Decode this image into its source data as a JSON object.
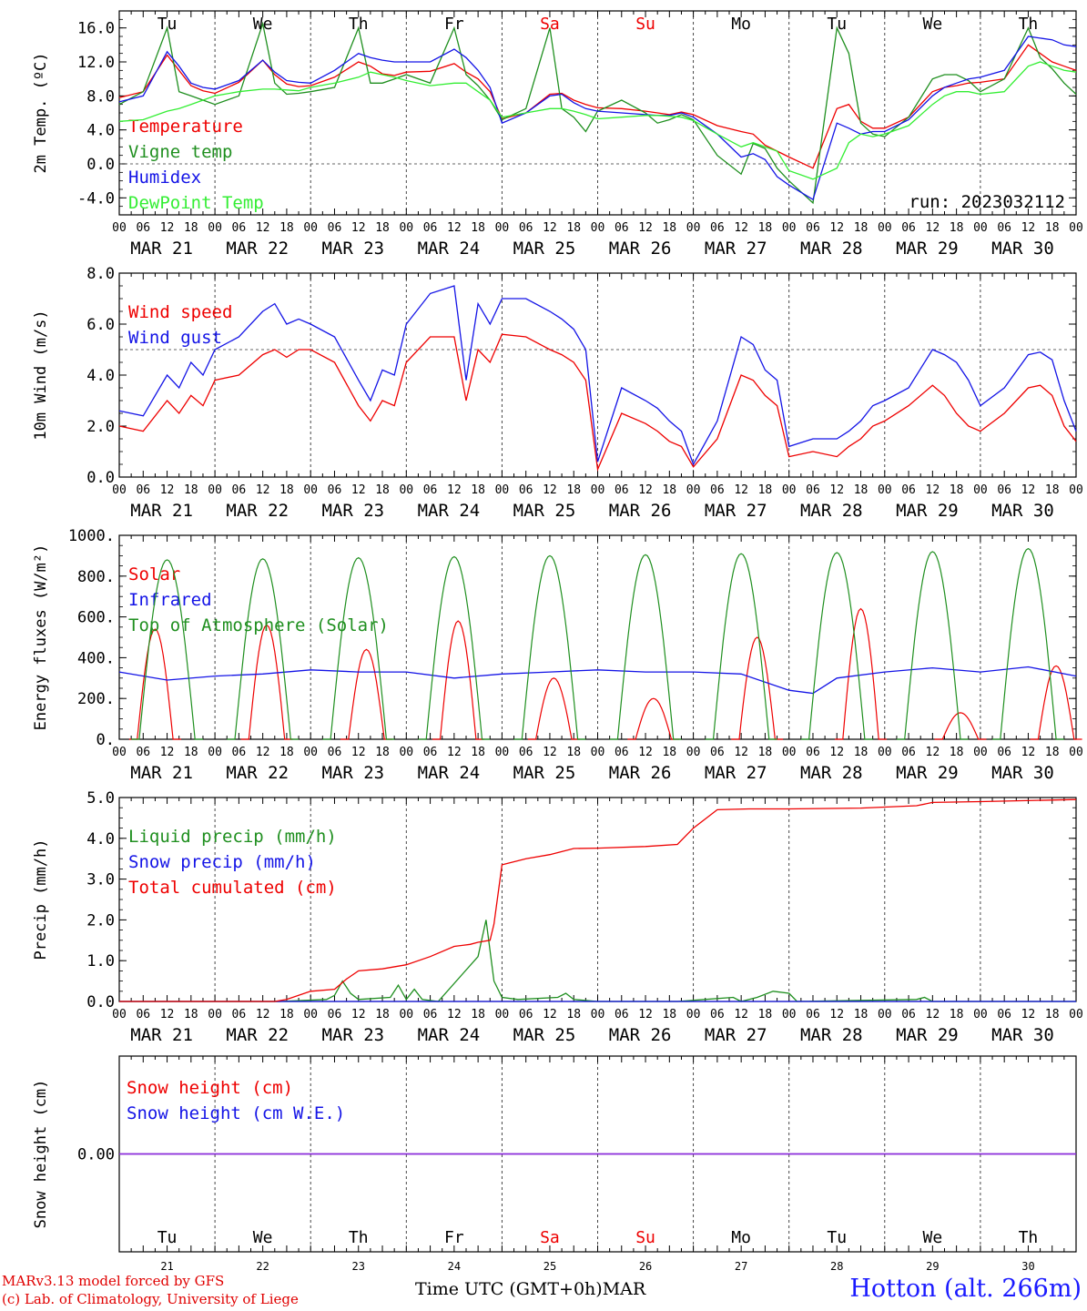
{
  "footer": {
    "credit_line1": "MARv3.13 model forced by GFS",
    "credit_line2": "(c) Lab. of Climatology, University of Liege",
    "xlabel": "Time UTC (GMT+0h)",
    "month": "MAR",
    "station": "Hotton (alt. 266m)"
  },
  "colors": {
    "red": "#ee0000",
    "green": "#1f8f1f",
    "blue": "#1414e6",
    "lightgreen": "#33ee33",
    "purple": "#8a2be2",
    "weekend": "#ee0000"
  },
  "days": {
    "labels": [
      "Tu",
      "We",
      "Th",
      "Fr",
      "Sa",
      "Su",
      "Mo",
      "Tu",
      "We",
      "Th"
    ],
    "weekend": [
      false,
      false,
      false,
      false,
      true,
      true,
      false,
      false,
      false,
      false
    ],
    "dates": [
      "MAR 21",
      "MAR 22",
      "MAR 23",
      "MAR 24",
      "MAR 25",
      "MAR 26",
      "MAR 27",
      "MAR 28",
      "MAR 29",
      "MAR 30"
    ],
    "daynums": [
      "21",
      "22",
      "23",
      "24",
      "25",
      "26",
      "27",
      "28",
      "29",
      "30"
    ],
    "hours": [
      "00",
      "06",
      "12",
      "18"
    ],
    "end_hour": "00"
  },
  "chart_data": [
    {
      "type": "line",
      "ylabel": "2m Temp. (ºC)",
      "ylim": [
        -6,
        18
      ],
      "yticks": [
        "-4.0",
        "0.0",
        "4.0",
        "8.0",
        "12.0",
        "16.0"
      ],
      "ytick_values": [
        -4,
        0,
        4,
        8,
        12,
        16
      ],
      "ref_line": 0,
      "annotation": "run: 2023032112",
      "x_hours": [
        0,
        6,
        12,
        15,
        18,
        21,
        24,
        30,
        36,
        39,
        42,
        45,
        48,
        54,
        60,
        63,
        66,
        69,
        72,
        78,
        84,
        87,
        90,
        93,
        96,
        102,
        108,
        111,
        114,
        117,
        120,
        126,
        132,
        135,
        138,
        141,
        144,
        150,
        156,
        159,
        162,
        165,
        168,
        174,
        180,
        183,
        186,
        189,
        192,
        198,
        204,
        207,
        210,
        213,
        216,
        222,
        228,
        231,
        234,
        237,
        240
      ],
      "series": [
        {
          "name": "Temperature",
          "color": "red",
          "values": [
            7.8,
            8.5,
            12.8,
            11,
            9.2,
            8.6,
            8.3,
            9.6,
            12.2,
            10.5,
            9.4,
            9.1,
            9.2,
            10.2,
            12,
            11.5,
            10.6,
            10.4,
            10.8,
            10.9,
            11.8,
            10.8,
            10,
            8.5,
            5.3,
            6,
            8.2,
            8.3,
            7.5,
            7,
            6.6,
            6.5,
            6.2,
            6,
            5.8,
            6.1,
            5.8,
            4.5,
            3.8,
            3.5,
            2.2,
            1.5,
            0.8,
            -0.5,
            6.5,
            7,
            5,
            4.2,
            4.2,
            5.5,
            8.5,
            9,
            9.2,
            9.5,
            9.6,
            10,
            14,
            13,
            12,
            11.5,
            11
          ]
        },
        {
          "name": "Vigne temp",
          "color": "green",
          "values": [
            7,
            8.5,
            16,
            8.5,
            8,
            7.5,
            7,
            8,
            16.5,
            9.5,
            8.2,
            8.3,
            8.5,
            9,
            16,
            9.5,
            9.5,
            10,
            10.5,
            9.5,
            16,
            10.5,
            9.2,
            7.5,
            5.2,
            6.5,
            16,
            6.5,
            5.5,
            3.8,
            6.2,
            7.5,
            6,
            4.8,
            5.2,
            5.8,
            5.2,
            1,
            -1.2,
            2.4,
            1.8,
            -0.5,
            -2,
            -4.6,
            16,
            13,
            4.8,
            3.5,
            3.2,
            5.5,
            10,
            10.5,
            10.5,
            9.8,
            8.5,
            10,
            16,
            12.5,
            11.2,
            9.5,
            8.2
          ]
        },
        {
          "name": "Humidex",
          "color": "blue",
          "values": [
            7.3,
            8,
            13.2,
            11.5,
            9.5,
            9,
            8.8,
            9.8,
            12.2,
            10.8,
            9.8,
            9.6,
            9.5,
            11,
            13,
            12.5,
            12.2,
            12,
            12,
            12,
            13.5,
            12.5,
            11,
            9,
            4.8,
            6,
            8,
            8.2,
            7.2,
            6.5,
            6.2,
            6,
            5.8,
            5.7,
            5.7,
            6,
            5.5,
            3.5,
            0.8,
            1.2,
            0.5,
            -1.5,
            -2.5,
            -4.2,
            4.8,
            4.2,
            3.5,
            3.8,
            3.8,
            5.2,
            8,
            9,
            9.5,
            10,
            10.2,
            11,
            15,
            14.8,
            14.6,
            14,
            13.8
          ]
        },
        {
          "name": "DewPoint Temp",
          "color": "lightgreen",
          "values": [
            5,
            5.2,
            6.2,
            6.5,
            7,
            7.5,
            8,
            8.5,
            8.8,
            8.8,
            8.7,
            8.6,
            9,
            9.5,
            10.2,
            10.8,
            10.5,
            10.2,
            9.8,
            9.2,
            9.5,
            9.5,
            8.5,
            7.5,
            5.5,
            6,
            6.5,
            6.5,
            6.2,
            5.8,
            5.3,
            5.5,
            5.7,
            5.7,
            5.6,
            5.5,
            5.1,
            3.5,
            2,
            2.5,
            2,
            1.5,
            -0.8,
            -1.8,
            -0.5,
            2.5,
            3.5,
            3.2,
            3.5,
            4.5,
            7,
            8,
            8.5,
            8.5,
            8.2,
            8.5,
            11.5,
            12,
            11.5,
            11,
            10.8
          ]
        }
      ]
    },
    {
      "type": "line",
      "ylabel": "10m Wind (m/s)",
      "ylim": [
        0,
        8
      ],
      "yticks": [
        "0.0",
        "2.0",
        "4.0",
        "6.0",
        "8.0"
      ],
      "ytick_values": [
        0,
        2,
        4,
        6,
        8
      ],
      "ref_line": 5,
      "x_hours": [
        0,
        6,
        12,
        15,
        18,
        21,
        24,
        30,
        36,
        39,
        42,
        45,
        48,
        54,
        60,
        63,
        66,
        69,
        72,
        78,
        84,
        87,
        90,
        93,
        96,
        102,
        108,
        111,
        114,
        117,
        120,
        126,
        132,
        135,
        138,
        141,
        144,
        150,
        156,
        159,
        162,
        165,
        168,
        174,
        180,
        183,
        186,
        189,
        192,
        198,
        204,
        207,
        210,
        213,
        216,
        222,
        228,
        231,
        234,
        237,
        240
      ],
      "series": [
        {
          "name": "Wind speed",
          "color": "red",
          "values": [
            2,
            1.8,
            3,
            2.5,
            3.2,
            2.8,
            3.8,
            4,
            4.8,
            5,
            4.7,
            5,
            5,
            4.5,
            2.8,
            2.2,
            3,
            2.8,
            4.5,
            5.5,
            5.5,
            3,
            5,
            4.5,
            5.6,
            5.5,
            5,
            4.8,
            4.5,
            3.8,
            0.3,
            2.5,
            2.1,
            1.8,
            1.4,
            1.2,
            0.4,
            1.5,
            4,
            3.8,
            3.2,
            2.8,
            0.8,
            1,
            0.8,
            1.2,
            1.5,
            2,
            2.2,
            2.8,
            3.6,
            3.2,
            2.5,
            2,
            1.8,
            2.5,
            3.5,
            3.6,
            3.2,
            2,
            1.4
          ]
        },
        {
          "name": "Wind gust",
          "color": "blue",
          "values": [
            2.6,
            2.4,
            4,
            3.5,
            4.5,
            4,
            5,
            5.5,
            6.5,
            6.8,
            6,
            6.2,
            6,
            5.5,
            3.8,
            3,
            4.2,
            4,
            6,
            7.2,
            7.5,
            3.8,
            6.8,
            6,
            7,
            7,
            6.5,
            6.2,
            5.8,
            5,
            0.6,
            3.5,
            3,
            2.7,
            2.2,
            1.8,
            0.5,
            2.2,
            5.5,
            5.2,
            4.2,
            3.8,
            1.2,
            1.5,
            1.5,
            1.8,
            2.2,
            2.8,
            3,
            3.5,
            5,
            4.8,
            4.5,
            3.8,
            2.8,
            3.5,
            4.8,
            4.9,
            4.6,
            3,
            1.8
          ]
        }
      ]
    },
    {
      "type": "line",
      "ylabel": "Energy fluxes (W/m²)",
      "ylim": [
        0,
        1000
      ],
      "yticks": [
        "0.",
        "200.",
        "400.",
        "600.",
        "800.",
        "1000."
      ],
      "ytick_values": [
        0,
        200,
        400,
        600,
        800,
        1000
      ],
      "series": [
        {
          "name": "Solar",
          "color": "red",
          "peak_hours": [
            9,
            37,
            62,
            85,
            109,
            134,
            160,
            186,
            211,
            235
          ],
          "peaks": [
            540,
            560,
            440,
            580,
            300,
            200,
            500,
            640,
            130,
            360
          ]
        },
        {
          "name": "Infrared",
          "color": "blue",
          "x_hours": [
            0,
            12,
            24,
            36,
            48,
            60,
            72,
            84,
            96,
            108,
            120,
            132,
            144,
            156,
            168,
            174,
            180,
            192,
            204,
            216,
            228,
            240
          ],
          "values": [
            330,
            290,
            310,
            320,
            340,
            330,
            330,
            300,
            320,
            330,
            340,
            330,
            330,
            320,
            240,
            225,
            300,
            330,
            350,
            330,
            355,
            310
          ]
        },
        {
          "name": "Top of Atmosphere (Solar)",
          "color": "green",
          "peak_hours": [
            12,
            36,
            60,
            84,
            108,
            132,
            156,
            180,
            204,
            228
          ],
          "peaks": [
            880,
            885,
            890,
            895,
            900,
            905,
            910,
            915,
            920,
            935
          ]
        }
      ]
    },
    {
      "type": "line",
      "ylabel": "Precip (mm/h)",
      "ylim": [
        0,
        5
      ],
      "yticks": [
        "0.0",
        "1.0",
        "2.0",
        "3.0",
        "4.0",
        "5.0"
      ],
      "ytick_values": [
        0,
        1,
        2,
        3,
        4,
        5
      ],
      "series": [
        {
          "name": "Liquid precip (mm/h)",
          "color": "green",
          "x_hours": [
            0,
            40,
            52,
            54,
            56,
            58,
            60,
            68,
            70,
            72,
            74,
            76,
            80,
            90,
            92,
            94,
            96,
            100,
            110,
            112,
            114,
            120,
            126,
            140,
            154,
            156,
            160,
            164,
            168,
            170,
            200,
            202,
            204,
            240
          ],
          "values": [
            0,
            0,
            0.05,
            0.15,
            0.5,
            0.2,
            0.05,
            0.1,
            0.4,
            0.05,
            0.3,
            0.05,
            0,
            1.1,
            2,
            0.5,
            0.1,
            0.05,
            0.1,
            0.2,
            0.05,
            0,
            0,
            0,
            0.1,
            0,
            0.1,
            0.25,
            0.2,
            0,
            0.05,
            0.1,
            0,
            0
          ]
        },
        {
          "name": "Snow precip (mm/h)",
          "color": "blue",
          "x_hours": [
            0,
            240
          ],
          "values": [
            0,
            0
          ]
        },
        {
          "name": "Total cumulated (cm)",
          "color": "red",
          "x_hours": [
            0,
            39,
            42,
            48,
            54,
            57,
            60,
            66,
            72,
            78,
            84,
            88,
            90,
            93,
            94,
            96,
            102,
            108,
            114,
            120,
            132,
            140,
            144,
            150,
            158,
            168,
            186,
            200,
            204,
            216,
            240
          ],
          "values": [
            0,
            0,
            0.05,
            0.25,
            0.3,
            0.55,
            0.75,
            0.8,
            0.9,
            1.1,
            1.35,
            1.4,
            1.45,
            1.5,
            1.9,
            3.35,
            3.5,
            3.6,
            3.75,
            3.76,
            3.8,
            3.85,
            4.25,
            4.7,
            4.72,
            4.72,
            4.74,
            4.8,
            4.88,
            4.9,
            4.95
          ]
        }
      ]
    },
    {
      "type": "line",
      "ylabel": "Snow height (cm)",
      "ylim": [
        -1,
        1
      ],
      "yticks": [
        "0.00"
      ],
      "ytick_values": [
        0
      ],
      "series": [
        {
          "name": "Snow height (cm)",
          "color": "red",
          "x_hours": [
            0,
            240
          ],
          "values": [
            0,
            0
          ]
        },
        {
          "name": "Snow height (cm W.E.)",
          "color": "blue",
          "x_hours": [
            0,
            240
          ],
          "values": [
            0,
            0
          ]
        }
      ]
    }
  ]
}
